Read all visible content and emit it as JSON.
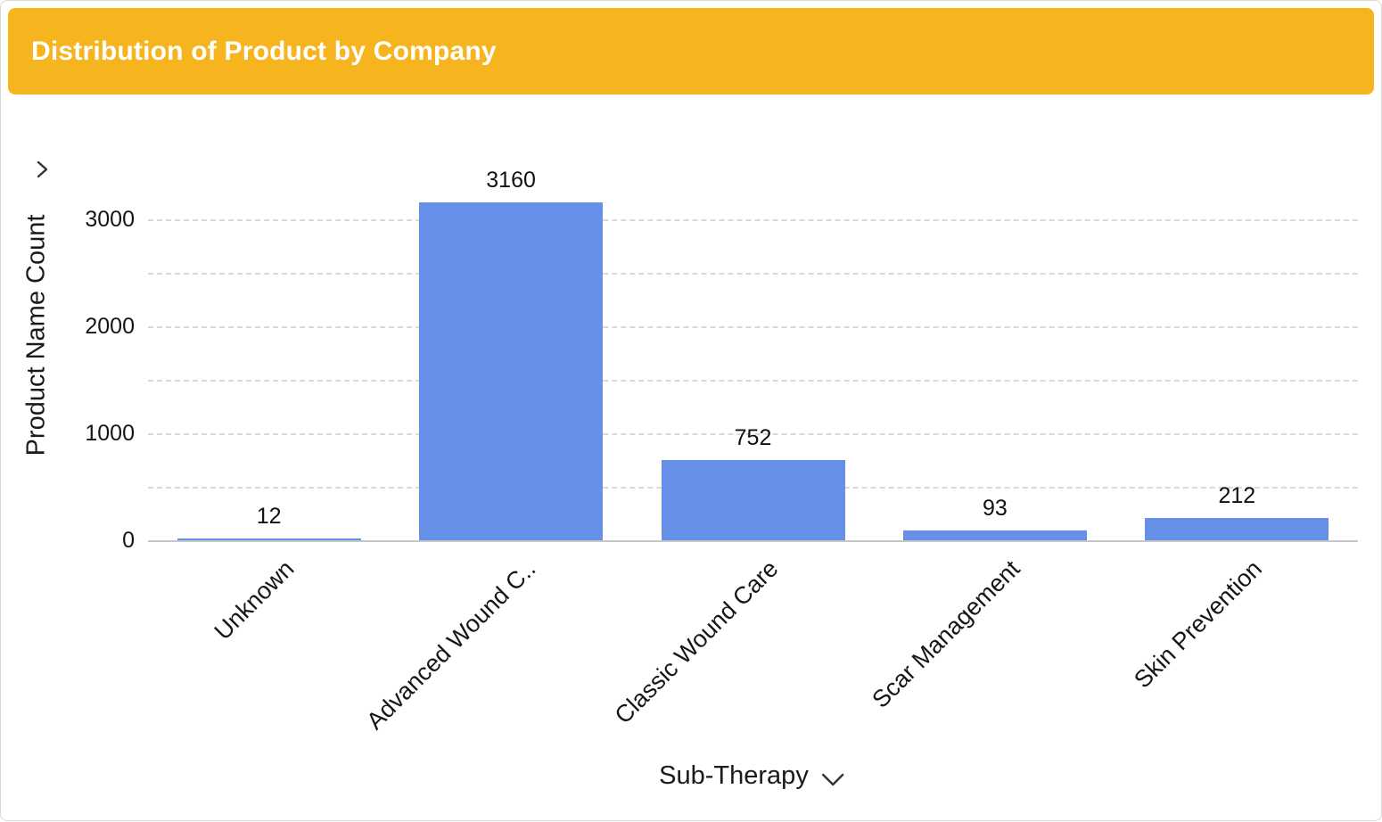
{
  "header": {
    "title": "Distribution of Product by Company"
  },
  "colors": {
    "header_bg": "#F6B41F",
    "bar_fill": "#6690E8",
    "grid_line": "#d9d9d9",
    "axis_line": "#c6c6c6",
    "text": "#161616"
  },
  "icons": {
    "y_axis": "chevron-right-icon",
    "x_axis": "chevron-down-icon"
  },
  "chart_data": {
    "type": "bar",
    "categories": [
      "Unknown",
      "Advanced Wound C..",
      "Classic Wound Care",
      "Scar Management",
      "Skin Prevention"
    ],
    "values": [
      12,
      3160,
      752,
      93,
      212
    ],
    "title": "Distribution of Product by Company",
    "xlabel": "Sub-Therapy",
    "ylabel": "Product Name Count",
    "ylim": [
      0,
      3500
    ],
    "yticks": [
      0,
      1000,
      2000,
      3000
    ],
    "gridline_step": 500,
    "grid": true,
    "legend": "none",
    "bar_value_labels": true
  }
}
